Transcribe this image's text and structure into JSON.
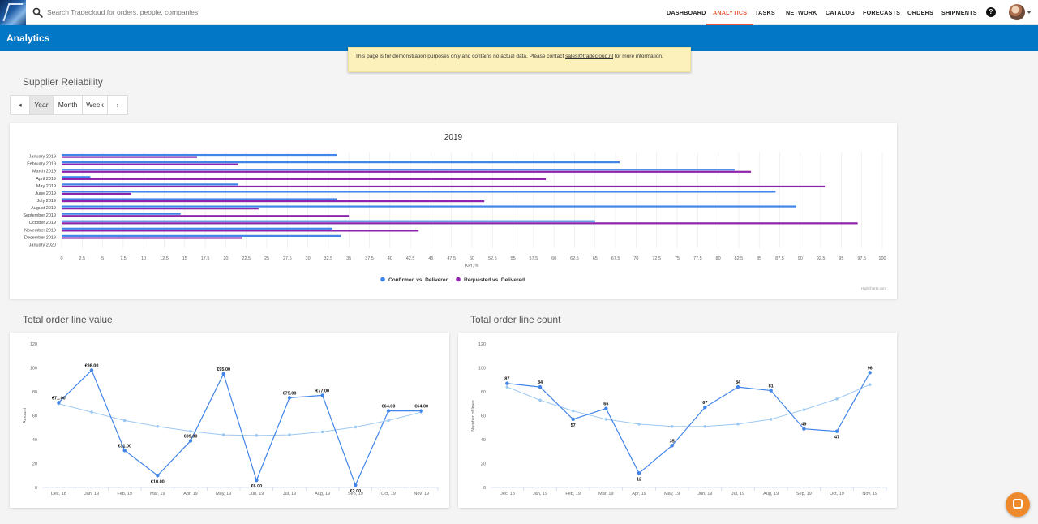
{
  "search": {
    "placeholder": "Search Tradecloud for orders, people, companies"
  },
  "nav": {
    "items": [
      "DASHBOARD",
      "ANALYTICS",
      "TASKS",
      "NETWORK",
      "CATALOG",
      "FORECASTS",
      "ORDERS",
      "SHIPMENTS"
    ],
    "active": "ANALYTICS"
  },
  "icons": {
    "search": "search-icon",
    "help": "help-icon",
    "avatar": "avatar",
    "chat": "chat-icon"
  },
  "colors": {
    "accent": "#e8573f",
    "header": "#0277c6",
    "confirmed": "#4285e8",
    "requested": "#8e24aa",
    "trend": "#9cc8f2",
    "chat": "#ef8a2c"
  },
  "header": {
    "title": "Analytics"
  },
  "notice": {
    "text_before": "This page is for demonstration purposes only and contains no actual data. Please contact ",
    "link": "sales@tradecloud.nl",
    "text_after": " for more information."
  },
  "supplier": {
    "title": "Supplier Reliability",
    "period": {
      "prev": "◂",
      "next": "›",
      "options": [
        "Year",
        "Month",
        "Week"
      ],
      "active": "Year"
    }
  },
  "order_value": {
    "title": "Total order line value"
  },
  "order_count": {
    "title": "Total order line count"
  },
  "credits": "Highcharts.com",
  "chart_data": [
    {
      "type": "bar",
      "orientation": "horizontal",
      "title": "2019",
      "xlabel": "KPI, %",
      "xlim": [
        0,
        100
      ],
      "xtick_step": 2.5,
      "categories": [
        "January 2019",
        "February 2019",
        "March 2019",
        "April 2019",
        "May 2019",
        "June 2019",
        "July 2019",
        "August 2019",
        "September 2019",
        "October 2019",
        "November 2019",
        "December 2019",
        "January 2020"
      ],
      "series": [
        {
          "name": "Confirmed vs. Delivered",
          "color": "#4285e8",
          "values": [
            33.5,
            68,
            82,
            3.5,
            21.5,
            87,
            33.5,
            89.5,
            14.5,
            65,
            33,
            34,
            null
          ]
        },
        {
          "name": "Requested vs. Delivered",
          "color": "#8e24aa",
          "values": [
            16.5,
            21.5,
            84,
            59,
            93,
            8.5,
            51.5,
            24,
            35,
            97,
            43.5,
            22,
            null
          ]
        }
      ],
      "legend": "bottom-center",
      "grid": true
    },
    {
      "type": "line",
      "ylabel": "Amount",
      "ylim": [
        0,
        120
      ],
      "ytick_step": 20,
      "categories": [
        "Dec, 18",
        "Jan, 19",
        "Feb, 19",
        "Mar, 19",
        "Apr, 19",
        "May, 19",
        "Jun, 19",
        "Jul, 19",
        "Aug, 19",
        "Sep, 19",
        "Oct, 19",
        "Nov, 19"
      ],
      "series": [
        {
          "role": "value",
          "color": "#4285e8",
          "values": [
            71,
            98,
            31,
            10,
            39,
            95,
            6,
            75,
            77,
            2,
            64,
            64
          ],
          "labels": [
            "€71.00",
            "€98.00",
            "€31.00",
            "€10.00",
            "€39.00",
            "€95.00",
            "€6.00",
            "€75.00",
            "€77.00",
            "€2.00",
            "€64.00",
            "€64.00"
          ]
        },
        {
          "role": "trend",
          "color": "#9cc8f2",
          "values": [
            70,
            63,
            56,
            51,
            47,
            44,
            43.5,
            44,
            46.5,
            50.5,
            56,
            63
          ]
        }
      ],
      "grid": false
    },
    {
      "type": "line",
      "ylabel": "Number of lines",
      "ylim": [
        0,
        120
      ],
      "ytick_step": 20,
      "categories": [
        "Dec, 18",
        "Jan, 19",
        "Feb, 19",
        "Mar, 19",
        "Apr, 19",
        "May, 19",
        "Jun, 19",
        "Jul, 19",
        "Aug, 19",
        "Sep, 19",
        "Oct, 19",
        "Nov, 19"
      ],
      "series": [
        {
          "role": "value",
          "color": "#4285e8",
          "values": [
            87,
            84,
            57,
            66,
            12,
            35,
            67,
            84,
            81,
            49,
            47,
            96
          ],
          "labels": [
            "87",
            "84",
            "57",
            "66",
            "12",
            "35",
            "67",
            "84",
            "81",
            "49",
            "47",
            "96"
          ]
        },
        {
          "role": "trend",
          "color": "#9cc8f2",
          "values": [
            84,
            73,
            64,
            57,
            53,
            51,
            51,
            53,
            57,
            65,
            74,
            86
          ]
        }
      ],
      "grid": false
    }
  ]
}
